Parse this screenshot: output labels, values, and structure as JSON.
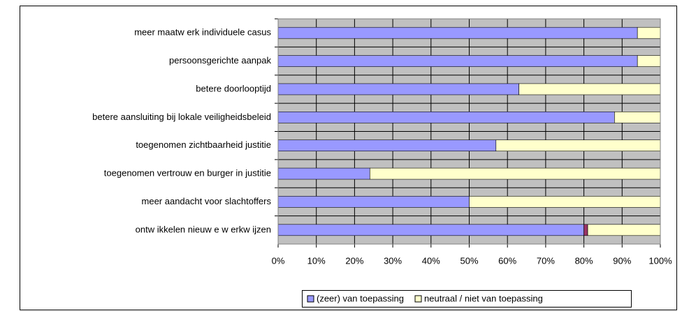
{
  "chart_data": {
    "type": "stacked-bar-horizontal",
    "categories": [
      "meer maatw erk individuele casus",
      "persoonsgerichte aanpak",
      "betere doorlooptijd",
      "betere aansluiting bij lokale veiligheidsbeleid",
      "toegenomen zichtbaarheid justitie",
      "toegenomen vertrouw en burger in justitie",
      "meer aandacht voor slachtoffers",
      "ontw ikkelen nieuw e w erkw ijzen"
    ],
    "series": [
      {
        "name": "(zeer) van toepassing",
        "color": "#9999ff",
        "values": [
          94,
          94,
          63,
          88,
          57,
          24,
          50,
          80
        ]
      },
      {
        "color": "#993366",
        "values": [
          0,
          0,
          0,
          0,
          0,
          0,
          0,
          1
        ]
      },
      {
        "name": "neutraal / niet van toepassing",
        "color": "#ffffcc",
        "values": [
          6,
          6,
          37,
          12,
          43,
          76,
          50,
          19
        ]
      }
    ],
    "xlim": [
      0,
      100
    ],
    "xticks": [
      {
        "value": 0,
        "label": "0%"
      },
      {
        "value": 10,
        "label": "10%"
      },
      {
        "value": 20,
        "label": "20%"
      },
      {
        "value": 30,
        "label": "30%"
      },
      {
        "value": 40,
        "label": "40%"
      },
      {
        "value": 50,
        "label": "50%"
      },
      {
        "value": 60,
        "label": "60%"
      },
      {
        "value": 70,
        "label": "70%"
      },
      {
        "value": 80,
        "label": "80%"
      },
      {
        "value": 90,
        "label": "90%"
      },
      {
        "value": 100,
        "label": "100%"
      }
    ],
    "grid": true,
    "legend": "bottom"
  }
}
